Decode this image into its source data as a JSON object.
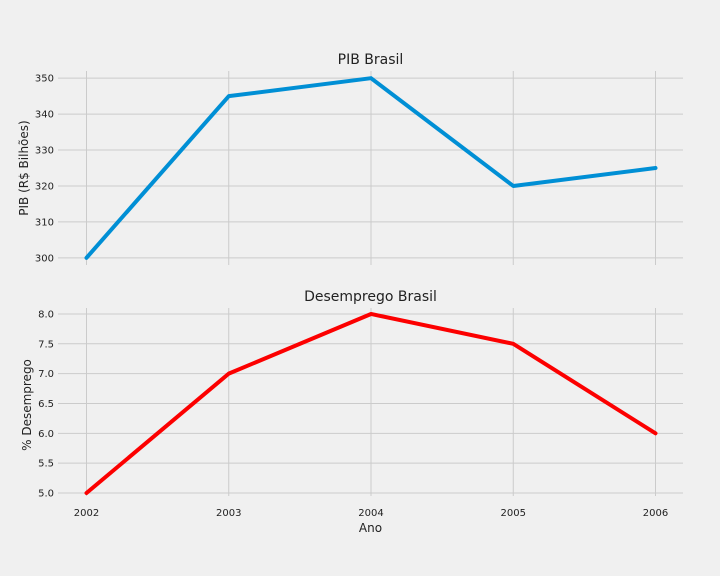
{
  "chart_data": [
    {
      "type": "line",
      "title": "PIB Brasil",
      "xlabel": "",
      "ylabel": "PIB (R$ Bilhões)",
      "x": [
        2002,
        2003,
        2004,
        2005,
        2006
      ],
      "x_tick_labels_visible": false,
      "y": [
        300,
        345,
        350,
        320,
        325
      ],
      "ylim": [
        298,
        352
      ],
      "yticks": [
        300,
        310,
        320,
        330,
        340,
        350
      ],
      "grid": true,
      "color": "#008fd5"
    },
    {
      "type": "line",
      "title": "Desemprego Brasil",
      "xlabel": "Ano",
      "ylabel": "% Desemprego",
      "x": [
        2002,
        2003,
        2004,
        2005,
        2006
      ],
      "xticks": [
        "2002",
        "2003",
        "2004",
        "2005",
        "2006"
      ],
      "y": [
        5.0,
        7.0,
        8.0,
        7.5,
        6.0
      ],
      "ylim": [
        4.95,
        8.1
      ],
      "yticks": [
        5.0,
        5.5,
        6.0,
        6.5,
        7.0,
        7.5,
        8.0
      ],
      "grid": true,
      "color": "#fc0000"
    }
  ]
}
